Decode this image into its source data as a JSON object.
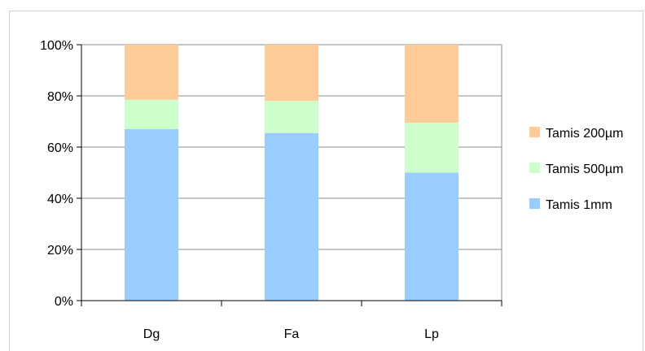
{
  "chart_data": {
    "type": "bar",
    "stacked": "percent",
    "categories": [
      "Dg",
      "Fa",
      "Lp"
    ],
    "series": [
      {
        "name": "Tamis 1mm",
        "values": [
          67,
          65.5,
          50
        ],
        "color": "#99ccff"
      },
      {
        "name": "Tamis 500µm",
        "values": [
          11.5,
          12.5,
          19.5
        ],
        "color": "#ccffcc"
      },
      {
        "name": "Tamis 200µm",
        "values": [
          21.5,
          22,
          30.5
        ],
        "color": "#ffcc99"
      }
    ],
    "yticks": [
      "0%",
      "20%",
      "40%",
      "60%",
      "80%",
      "100%"
    ],
    "ylim": [
      0,
      100
    ],
    "grid": true,
    "legend": "right",
    "title": "",
    "xlabel": "",
    "ylabel": ""
  }
}
